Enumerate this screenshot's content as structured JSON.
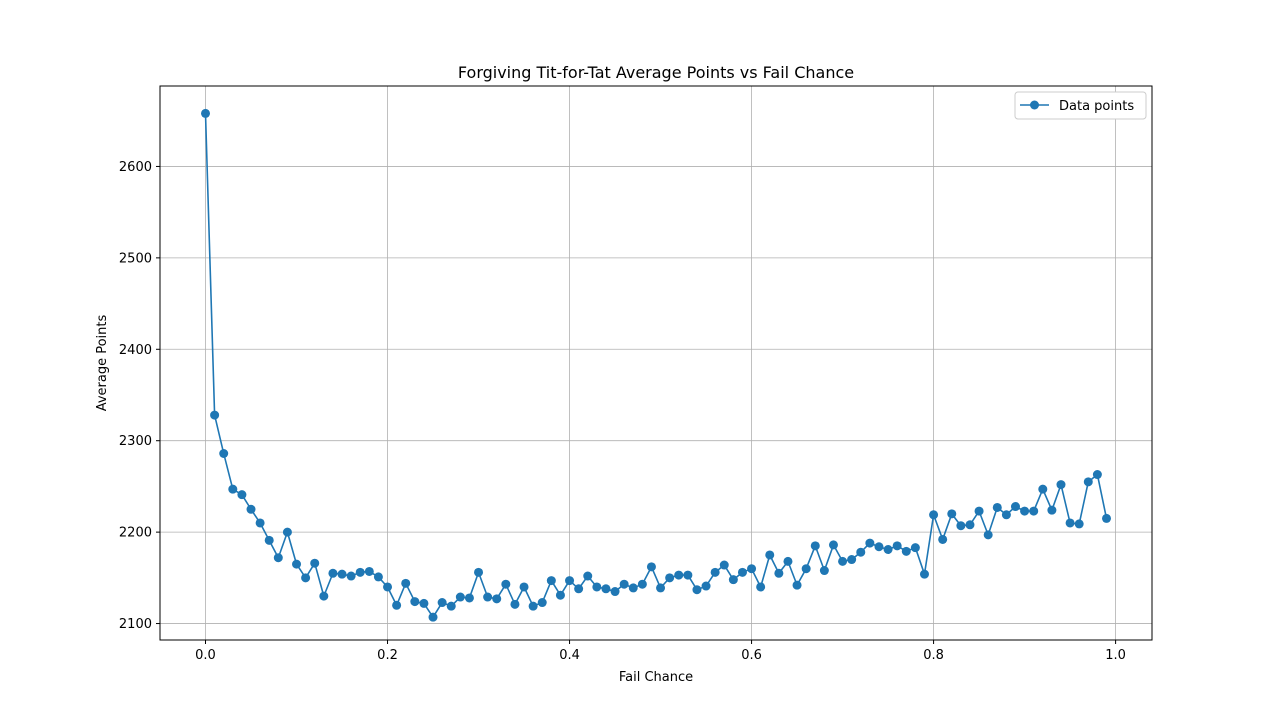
{
  "chart_data": {
    "type": "line",
    "title": "Forgiving Tit-for-Tat Average Points vs Fail Chance",
    "xlabel": "Fail Chance",
    "ylabel": "Average Points",
    "xlim": [
      -0.05,
      1.04
    ],
    "ylim": [
      2082,
      2688
    ],
    "xticks": [
      0.0,
      0.2,
      0.4,
      0.6,
      0.8,
      1.0
    ],
    "xtick_labels": [
      "0.0",
      "0.2",
      "0.4",
      "0.6",
      "0.8",
      "1.0"
    ],
    "yticks": [
      2100,
      2200,
      2300,
      2400,
      2500,
      2600
    ],
    "ytick_labels": [
      "2100",
      "2200",
      "2300",
      "2400",
      "2500",
      "2600"
    ],
    "grid": true,
    "legend_position": "top-right",
    "color": "#1f77b4",
    "series": [
      {
        "name": "Data points",
        "marker": "circle",
        "x": [
          0.0,
          0.01,
          0.02,
          0.03,
          0.04,
          0.05,
          0.06,
          0.07,
          0.08,
          0.09,
          0.1,
          0.11,
          0.12,
          0.13,
          0.14,
          0.15,
          0.16,
          0.17,
          0.18,
          0.19,
          0.2,
          0.21,
          0.22,
          0.23,
          0.24,
          0.25,
          0.26,
          0.27,
          0.28,
          0.29,
          0.3,
          0.31,
          0.32,
          0.33,
          0.34,
          0.35,
          0.36,
          0.37,
          0.38,
          0.39,
          0.4,
          0.41,
          0.42,
          0.43,
          0.44,
          0.45,
          0.46,
          0.47,
          0.48,
          0.49,
          0.5,
          0.51,
          0.52,
          0.53,
          0.54,
          0.55,
          0.56,
          0.57,
          0.58,
          0.59,
          0.6,
          0.61,
          0.62,
          0.63,
          0.64,
          0.65,
          0.66,
          0.67,
          0.68,
          0.69,
          0.7,
          0.71,
          0.72,
          0.73,
          0.74,
          0.75,
          0.76,
          0.77,
          0.78,
          0.79,
          0.8,
          0.81,
          0.82,
          0.83,
          0.84,
          0.85,
          0.86,
          0.87,
          0.88,
          0.89,
          0.9,
          0.91,
          0.92,
          0.93,
          0.94,
          0.95,
          0.96,
          0.97,
          0.98,
          0.99
        ],
        "y": [
          2658,
          2328,
          2286,
          2247,
          2241,
          2225,
          2210,
          2191,
          2172,
          2200,
          2165,
          2150,
          2166,
          2130,
          2155,
          2154,
          2152,
          2156,
          2157,
          2151,
          2140,
          2120,
          2144,
          2124,
          2122,
          2107,
          2123,
          2119,
          2129,
          2128,
          2156,
          2129,
          2127,
          2143,
          2121,
          2140,
          2119,
          2123,
          2147,
          2131,
          2147,
          2138,
          2152,
          2140,
          2138,
          2135,
          2143,
          2139,
          2143,
          2162,
          2139,
          2150,
          2153,
          2153,
          2137,
          2141,
          2156,
          2164,
          2148,
          2156,
          2160,
          2140,
          2175,
          2155,
          2168,
          2142,
          2160,
          2185,
          2158,
          2186,
          2168,
          2170,
          2178,
          2188,
          2184,
          2181,
          2185,
          2179,
          2183,
          2154,
          2219,
          2192,
          2220,
          2207,
          2208,
          2223,
          2197,
          2227,
          2219,
          2228,
          2223,
          2223,
          2247,
          2224,
          2252,
          2210,
          2209,
          2255,
          2263,
          2215
        ]
      }
    ]
  }
}
